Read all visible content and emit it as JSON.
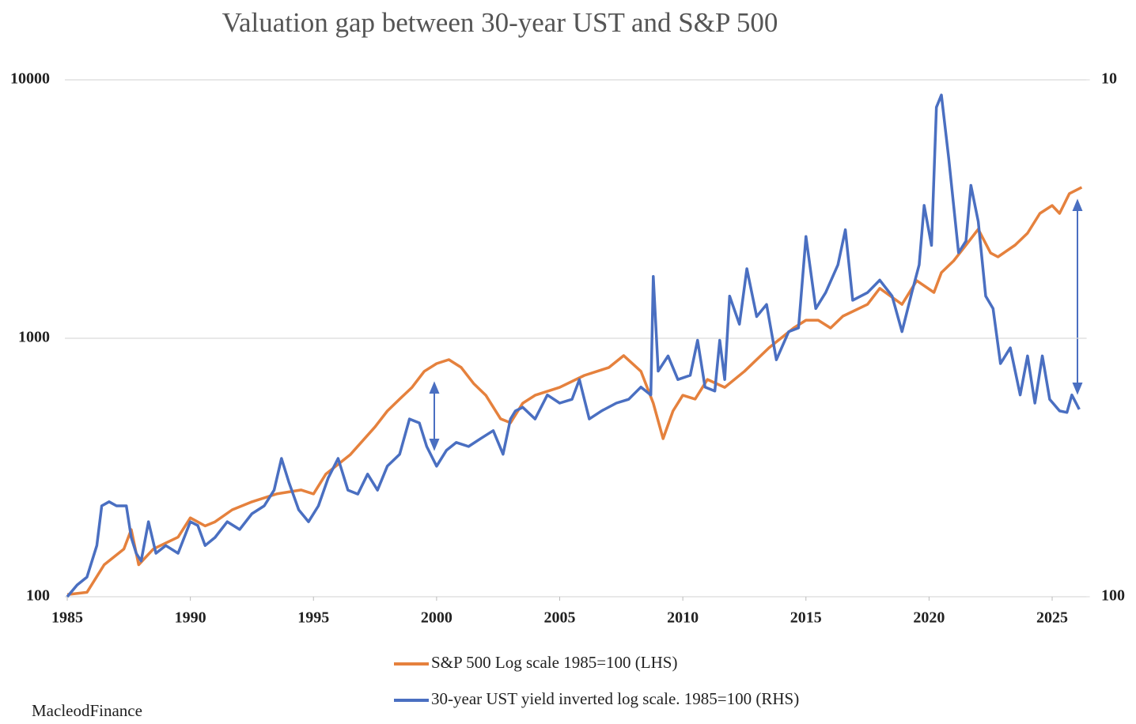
{
  "chart_data": {
    "type": "line",
    "title": "Valuation gap between 30-year UST and S&P 500",
    "log_scale": true,
    "grid": true,
    "xlim": [
      1985,
      2026.4
    ],
    "xticks": [
      1985,
      1990,
      1995,
      2000,
      2005,
      2010,
      2015,
      2020,
      2025
    ],
    "ylim": [
      100,
      10000
    ],
    "yticks": [
      100,
      1000,
      10000
    ],
    "y2lim": [
      100,
      10
    ],
    "y2ticks": [
      10,
      100
    ],
    "series": [
      {
        "name": "S&P 500 Log scale 1985=100 (LHS)",
        "color": "#e5813d",
        "x": [
          1985.0,
          1985.8,
          1986.5,
          1987.3,
          1987.6,
          1987.9,
          1988.5,
          1989.5,
          1990.0,
          1990.6,
          1991.0,
          1991.7,
          1992.5,
          1993.5,
          1994.5,
          1995.0,
          1995.5,
          1996.5,
          1997.5,
          1998.0,
          1998.5,
          1999.0,
          1999.5,
          2000.0,
          2000.5,
          2001.0,
          2001.5,
          2002.0,
          2002.6,
          2003.0,
          2003.5,
          2004.0,
          2005.0,
          2006.0,
          2007.0,
          2007.6,
          2008.3,
          2008.8,
          2009.2,
          2009.6,
          2010.0,
          2010.5,
          2011.0,
          2011.7,
          2012.5,
          2013.5,
          2014.5,
          2015.0,
          2015.5,
          2016.0,
          2016.5,
          2017.5,
          2018.0,
          2018.9,
          2019.5,
          2020.2,
          2020.5,
          2021.0,
          2021.5,
          2022.0,
          2022.5,
          2022.8,
          2023.5,
          2024.0,
          2024.5,
          2025.0,
          2025.3,
          2025.7,
          2026.2
        ],
        "values": [
          102,
          104,
          133,
          153,
          182,
          133,
          153,
          170,
          202,
          188,
          195,
          217,
          233,
          250,
          259,
          250,
          298,
          355,
          454,
          523,
          582,
          646,
          745,
          798,
          827,
          771,
          669,
          602,
          488,
          471,
          561,
          602,
          646,
          718,
          771,
          857,
          745,
          561,
          409,
          523,
          602,
          582,
          693,
          646,
          745,
          919,
          1096,
          1175,
          1175,
          1096,
          1218,
          1353,
          1560,
          1353,
          1671,
          1504,
          1795,
          1994,
          2296,
          2642,
          2138,
          2065,
          2296,
          2551,
          3043,
          3265,
          3043,
          3630,
          3839
        ]
      },
      {
        "name": "30-year UST yield inverted log scale. 1985=100 (RHS)",
        "color": "#4a6fc1",
        "axis": "y2",
        "x": [
          1985.0,
          1985.4,
          1985.8,
          1986.2,
          1986.4,
          1986.7,
          1987.0,
          1987.4,
          1987.6,
          1987.8,
          1988.0,
          1988.3,
          1988.6,
          1989.0,
          1989.5,
          1990.0,
          1990.3,
          1990.6,
          1991.0,
          1991.5,
          1992.0,
          1992.5,
          1993.0,
          1993.4,
          1993.7,
          1994.0,
          1994.4,
          1994.8,
          1995.2,
          1995.6,
          1996.0,
          1996.4,
          1996.8,
          1997.2,
          1997.6,
          1998.0,
          1998.5,
          1998.9,
          1999.3,
          1999.6,
          2000.0,
          2000.4,
          2000.8,
          2001.3,
          2001.8,
          2002.3,
          2002.7,
          2003.0,
          2003.2,
          2003.5,
          2004.0,
          2004.5,
          2005.0,
          2005.5,
          2005.8,
          2006.2,
          2006.7,
          2007.3,
          2007.8,
          2008.3,
          2008.7,
          2008.8,
          2009.0,
          2009.4,
          2009.8,
          2010.3,
          2010.6,
          2010.9,
          2011.3,
          2011.5,
          2011.7,
          2011.9,
          2012.3,
          2012.6,
          2013.0,
          2013.4,
          2013.8,
          2014.3,
          2014.7,
          2015.0,
          2015.4,
          2015.8,
          2016.3,
          2016.6,
          2016.9,
          2017.5,
          2018.0,
          2018.5,
          2018.9,
          2019.3,
          2019.6,
          2019.8,
          2020.1,
          2020.3,
          2020.5,
          2020.8,
          2021.2,
          2021.5,
          2021.7,
          2022.0,
          2022.3,
          2022.6,
          2022.9,
          2023.3,
          2023.7,
          2024.0,
          2024.3,
          2024.6,
          2024.9,
          2025.3,
          2025.6,
          2025.8,
          2026.1
        ],
        "values": [
          100,
          94.9,
          91.6,
          79.6,
          66.7,
          65.5,
          66.7,
          66.7,
          76.8,
          82.4,
          85.3,
          71.6,
          82.4,
          79.6,
          82.4,
          71.6,
          72.8,
          79.6,
          76.8,
          71.6,
          74.1,
          69.1,
          66.7,
          62.2,
          54.0,
          60.0,
          67.9,
          71.6,
          66.7,
          58.9,
          54.0,
          62.2,
          63.3,
          57.9,
          62.2,
          55.9,
          53.0,
          45.3,
          46.1,
          51.2,
          55.9,
          52.1,
          50.3,
          51.2,
          49.4,
          47.7,
          53.0,
          45.3,
          43.7,
          43.0,
          45.3,
          40.7,
          42.2,
          41.5,
          38.0,
          45.3,
          43.7,
          42.2,
          41.5,
          39.3,
          40.7,
          24.0,
          36.6,
          34.2,
          38.0,
          37.3,
          31.9,
          39.3,
          40.0,
          31.9,
          38.0,
          26.2,
          29.7,
          23.2,
          28.7,
          27.2,
          34.8,
          30.7,
          30.2,
          20.1,
          27.7,
          25.8,
          22.8,
          19.5,
          26.7,
          25.8,
          24.4,
          26.2,
          30.7,
          25.8,
          22.8,
          17.5,
          20.9,
          11.3,
          10.7,
          14.2,
          21.6,
          20.5,
          16.0,
          18.8,
          26.2,
          27.7,
          35.4,
          33.0,
          40.7,
          34.2,
          42.2,
          34.2,
          41.5,
          43.7,
          44.0,
          40.7,
          43.4
        ]
      }
    ],
    "source": "MacleodFinance"
  }
}
